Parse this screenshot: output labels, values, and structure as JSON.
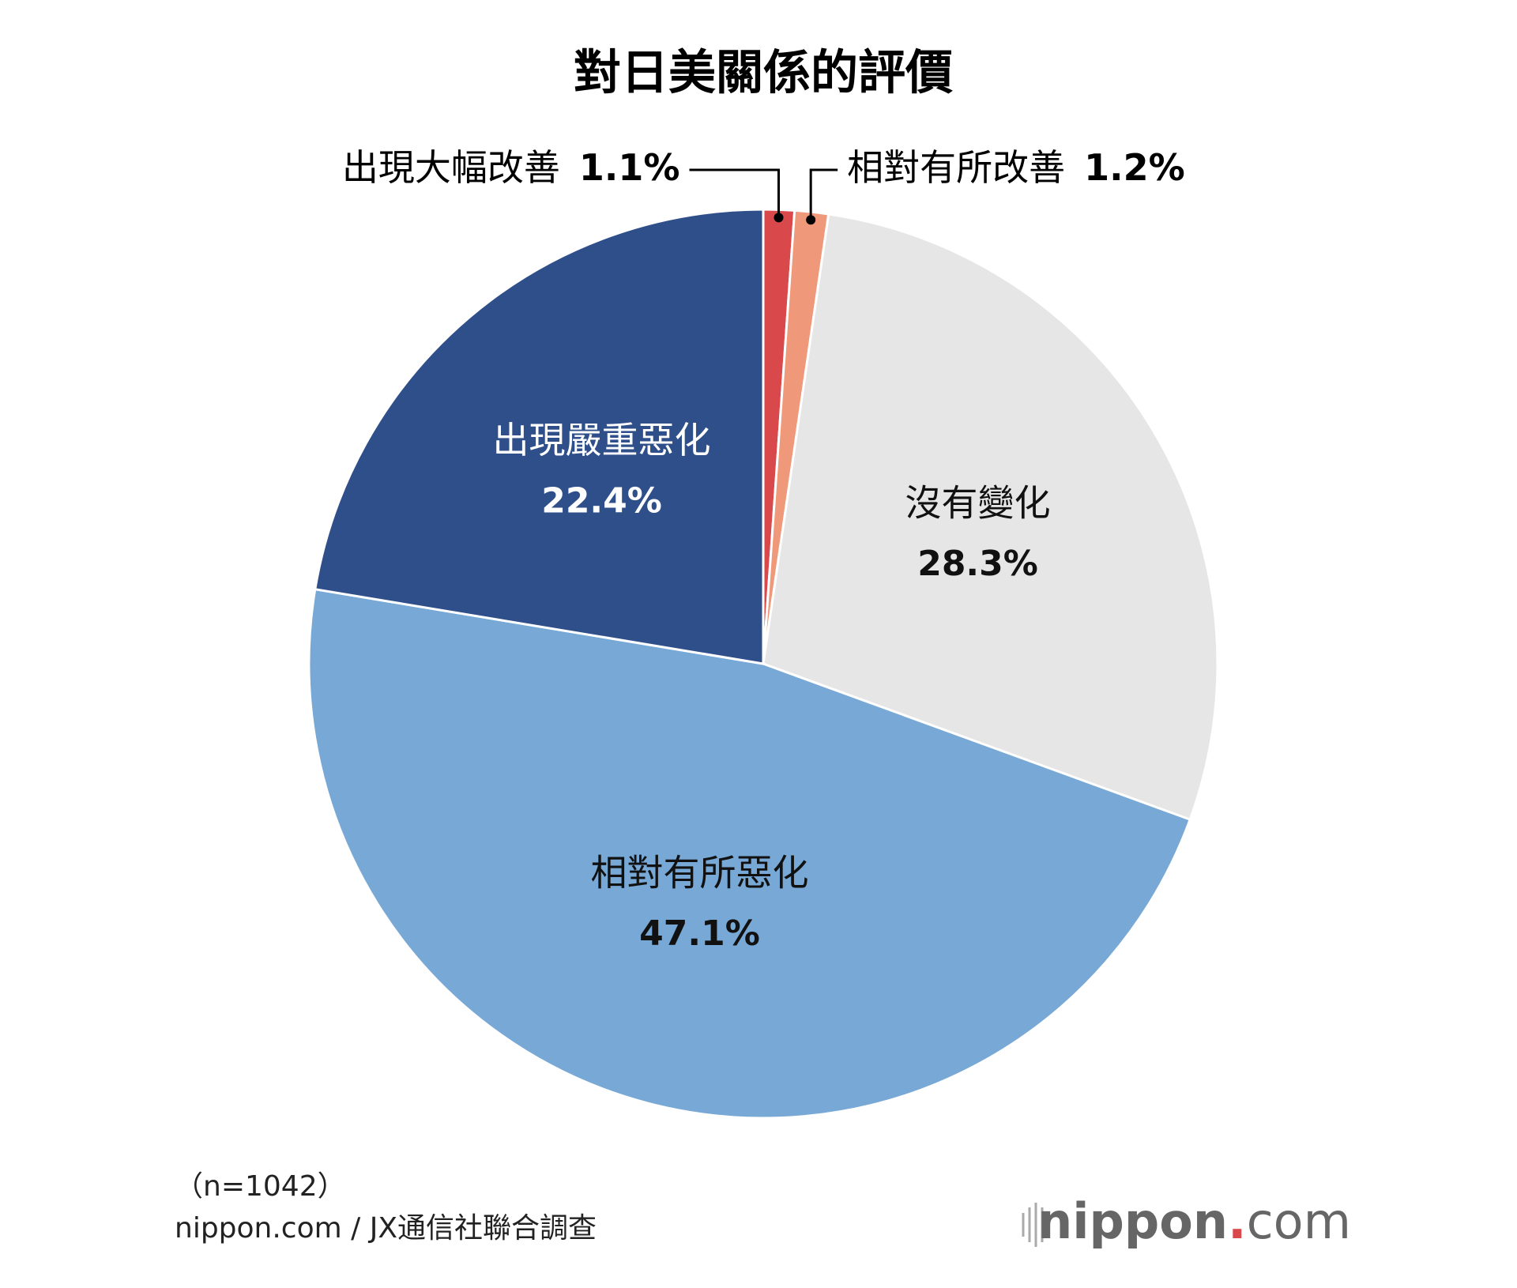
{
  "chart_data": {
    "type": "pie",
    "title": "對日美關係的評價",
    "categories": [
      "出現大幅改善",
      "相對有所改善",
      "沒有變化",
      "相對有所惡化",
      "出現嚴重惡化"
    ],
    "values": [
      1.1,
      1.2,
      28.3,
      47.1,
      22.4
    ],
    "value_labels": [
      "1.1%",
      "1.2%",
      "28.3%",
      "47.1%",
      "22.4%"
    ],
    "colors": [
      "#d9484a",
      "#f0997a",
      "#e6e6e6",
      "#77a8d6",
      "#2f4f8a"
    ]
  },
  "footnote": "（n=1042）",
  "source": "nippon.com / JX通信社聯合調查",
  "logo": [
    "nippon",
    ".",
    "com"
  ]
}
